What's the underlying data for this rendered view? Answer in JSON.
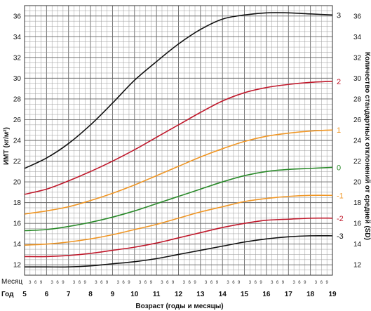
{
  "chart_data": {
    "type": "line",
    "ylabel": "ИМТ (кг/м²)",
    "ylabel_right": "Количество стандартных отклонений от средней (SD)",
    "xlabel": "Возраст (годы и месяцы)",
    "row_month_label": "Месяц",
    "row_year_label": "Год",
    "month_tick_labels": [
      "3",
      "6",
      "9"
    ],
    "xlim": [
      5,
      19
    ],
    "ylim": [
      11,
      37
    ],
    "yticks": [
      12,
      14,
      16,
      18,
      20,
      22,
      24,
      26,
      28,
      30,
      32,
      34,
      36
    ],
    "year_ticks": [
      5,
      6,
      7,
      8,
      9,
      10,
      11,
      12,
      13,
      14,
      15,
      16,
      17,
      18,
      19
    ],
    "grid": true,
    "colors": {
      "black": "#111111",
      "red": "#c0182b",
      "orange": "#f09624",
      "green": "#2a8a2a",
      "grid": "#9a9a9a"
    },
    "x": [
      5,
      6,
      7,
      8,
      9,
      10,
      11,
      12,
      13,
      14,
      15,
      16,
      17,
      18,
      19
    ],
    "series": [
      {
        "name": "3",
        "color": "#111111",
        "values": [
          21.3,
          22.3,
          23.7,
          25.5,
          27.6,
          29.8,
          31.6,
          33.3,
          34.7,
          35.7,
          36.1,
          36.3,
          36.3,
          36.2,
          36.1
        ]
      },
      {
        "name": "2",
        "color": "#c0182b",
        "values": [
          18.8,
          19.3,
          20.1,
          21.0,
          22.0,
          23.1,
          24.3,
          25.5,
          26.7,
          27.8,
          28.6,
          29.1,
          29.4,
          29.6,
          29.7
        ]
      },
      {
        "name": "1",
        "color": "#f09624",
        "values": [
          16.9,
          17.2,
          17.6,
          18.2,
          18.9,
          19.7,
          20.6,
          21.5,
          22.4,
          23.2,
          23.9,
          24.4,
          24.7,
          24.9,
          25.0
        ]
      },
      {
        "name": "0",
        "color": "#2a8a2a",
        "values": [
          15.3,
          15.4,
          15.7,
          16.1,
          16.6,
          17.2,
          17.9,
          18.6,
          19.3,
          20.0,
          20.6,
          21.0,
          21.2,
          21.3,
          21.4
        ]
      },
      {
        "name": "-1",
        "color": "#f09624",
        "values": [
          13.9,
          14.0,
          14.2,
          14.5,
          14.9,
          15.4,
          15.9,
          16.5,
          17.1,
          17.6,
          18.1,
          18.4,
          18.6,
          18.7,
          18.7
        ]
      },
      {
        "name": "-2",
        "color": "#c0182b",
        "values": [
          12.8,
          12.8,
          12.9,
          13.1,
          13.4,
          13.7,
          14.1,
          14.6,
          15.1,
          15.6,
          16.0,
          16.3,
          16.4,
          16.5,
          16.5
        ]
      },
      {
        "name": "-3",
        "color": "#111111",
        "values": [
          11.8,
          11.8,
          11.8,
          11.9,
          12.1,
          12.3,
          12.6,
          13.0,
          13.4,
          13.8,
          14.2,
          14.5,
          14.7,
          14.8,
          14.8
        ]
      }
    ]
  }
}
